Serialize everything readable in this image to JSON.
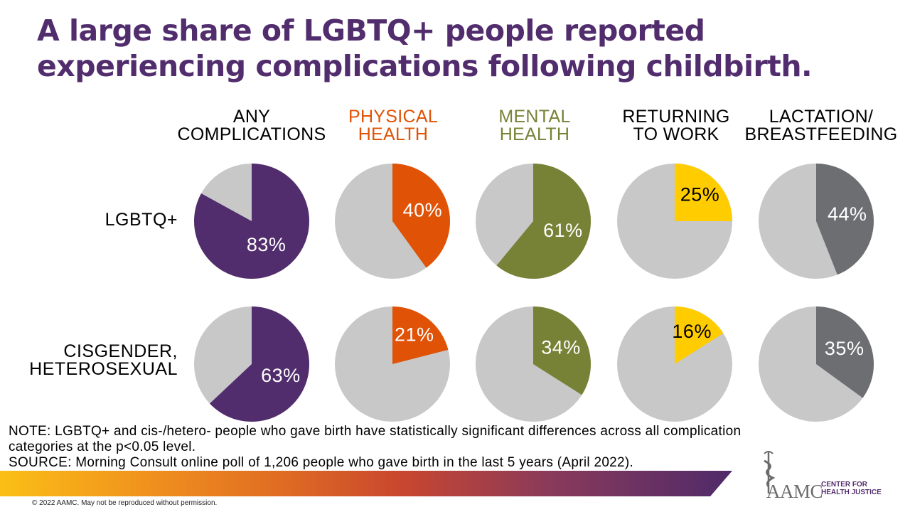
{
  "title": "A large share of LGBTQ+ people reported experiencing complications following childbirth.",
  "colors": {
    "title": "#522d6d",
    "any": "#522d6d",
    "physical": "#e05206",
    "mental": "#788237",
    "work": "#ffcc00",
    "lactation": "#6d6e71",
    "remainder": "#c8c8c9"
  },
  "chart_data": {
    "type": "pie",
    "title": "A large share of LGBTQ+ people reported experiencing complications following childbirth.",
    "categories": [
      {
        "label_lines": [
          "ANY",
          "COMPLICATIONS"
        ],
        "color": "#522d6d",
        "header_color": "#000000",
        "label_color": "#ffffff"
      },
      {
        "label_lines": [
          "PHYSICAL",
          "HEALTH"
        ],
        "color": "#e05206",
        "header_color": "#e05206",
        "label_color": "#ffffff"
      },
      {
        "label_lines": [
          "MENTAL",
          "HEALTH"
        ],
        "color": "#788237",
        "header_color": "#788237",
        "label_color": "#ffffff"
      },
      {
        "label_lines": [
          "RETURNING",
          "TO WORK"
        ],
        "color": "#ffcc00",
        "header_color": "#000000",
        "label_color": "#000000"
      },
      {
        "label_lines": [
          "LACTATION/",
          "BREASTFEEDING"
        ],
        "color": "#6d6e71",
        "header_color": "#000000",
        "label_color": "#ffffff"
      }
    ],
    "series": [
      {
        "name_lines": [
          "LGBTQ+"
        ],
        "values": [
          83,
          40,
          61,
          25,
          44
        ],
        "labels": [
          "83%",
          "40%",
          "61%",
          "25%",
          "44%"
        ]
      },
      {
        "name_lines": [
          "CISGENDER,",
          "HETEROSEXUAL"
        ],
        "values": [
          63,
          21,
          34,
          16,
          35
        ],
        "labels": [
          "63%",
          "21%",
          "34%",
          "16%",
          "35%"
        ]
      }
    ],
    "unit": "%"
  },
  "note_lines": [
    "NOTE: LGBTQ+ and cis-/hetero- people who gave birth have statistically significant differences across all complication",
    "categories at the p<0.05 level.",
    "SOURCE: Morning Consult online poll of 1,206 people who gave birth in the last 5 years (April 2022)."
  ],
  "copyright": "© 2022 AAMC. May not be reproduced without permission.",
  "logo": {
    "text": "AAMC",
    "sub_lines": [
      "CENTER FOR",
      "HEALTH JUSTICE"
    ],
    "icon": "caduceus-icon"
  }
}
